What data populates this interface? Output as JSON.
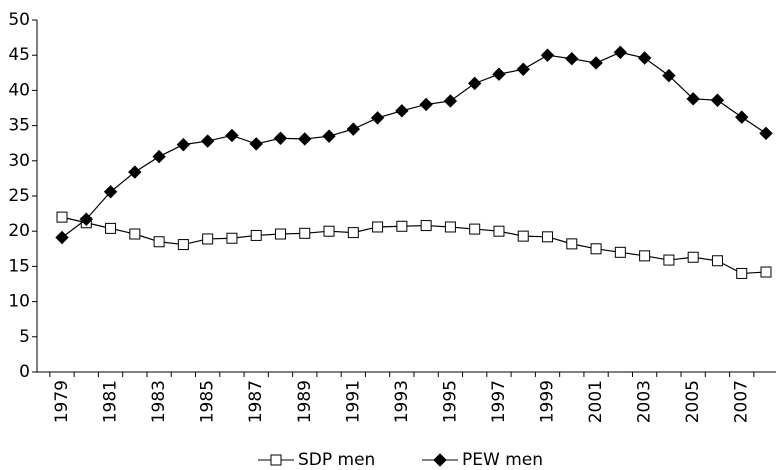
{
  "chart_data": {
    "type": "line",
    "categories": [
      "1979",
      null,
      "1981",
      null,
      "1983",
      null,
      "1985",
      null,
      "1987",
      null,
      "1989",
      null,
      "1991",
      null,
      "1993",
      null,
      "1995",
      null,
      "1997",
      null,
      "1999",
      null,
      "2001",
      null,
      "2003",
      null,
      "2005",
      null,
      "2007",
      null
    ],
    "series": [
      {
        "name": "SDP men",
        "color": "#000000",
        "marker": "square",
        "marker_fill": "#ffffff",
        "values": [
          22.0,
          21.2,
          20.4,
          19.6,
          18.5,
          18.1,
          18.9,
          19.0,
          19.4,
          19.6,
          19.7,
          20.0,
          19.8,
          20.6,
          20.7,
          20.8,
          20.6,
          20.3,
          20.0,
          19.3,
          19.2,
          18.2,
          17.5,
          17.0,
          16.5,
          15.9,
          16.3,
          15.8,
          14.0,
          14.2
        ]
      },
      {
        "name": "PEW men",
        "color": "#000000",
        "marker": "diamond",
        "marker_fill": "#000000",
        "values": [
          19.1,
          21.7,
          25.6,
          28.4,
          30.6,
          32.3,
          32.8,
          33.6,
          32.4,
          33.2,
          33.1,
          33.5,
          34.5,
          36.1,
          37.1,
          38.0,
          38.5,
          41.0,
          42.3,
          43.0,
          45.0,
          44.5,
          43.9,
          45.4,
          44.6,
          42.1,
          38.8,
          38.6,
          36.2,
          33.9
        ]
      }
    ],
    "ylim": [
      0,
      50
    ],
    "yticks": [
      0,
      5,
      10,
      15,
      20,
      25,
      30,
      35,
      40,
      45,
      50
    ],
    "legend": "bottom"
  }
}
